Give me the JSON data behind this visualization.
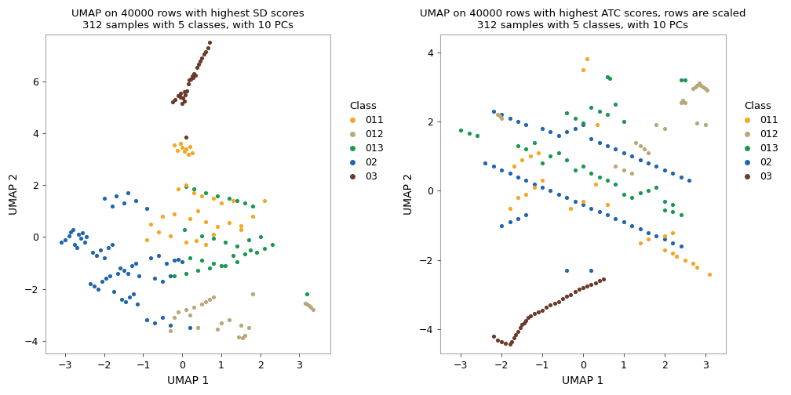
{
  "title1": "UMAP on 40000 rows with highest SD scores\n312 samples with 5 classes, with 10 PCs",
  "title2": "UMAP on 40000 rows with highest ATC scores, rows are scaled\n312 samples with 5 classes, with 10 PCs",
  "xlabel": "UMAP 1",
  "ylabel": "UMAP 2",
  "classes": [
    "011",
    "012",
    "013",
    "02",
    "03"
  ],
  "colors": {
    "011": "#F5A623",
    "012": "#B8A878",
    "013": "#1A9850",
    "02": "#2166AC",
    "03": "#6B3A2A"
  },
  "plot1": {
    "xlim": [
      -3.5,
      3.8
    ],
    "ylim": [
      -4.5,
      7.8
    ],
    "xticks": [
      -3,
      -2,
      -1,
      0,
      1,
      2,
      3
    ],
    "yticks": [
      -4,
      -2,
      0,
      2,
      4,
      6
    ]
  },
  "plot2": {
    "xlim": [
      -3.5,
      3.5
    ],
    "ylim": [
      -4.7,
      4.5
    ],
    "xticks": [
      -3,
      -2,
      -1,
      0,
      1,
      2,
      3
    ],
    "yticks": [
      -4,
      -2,
      0,
      2,
      4
    ]
  }
}
